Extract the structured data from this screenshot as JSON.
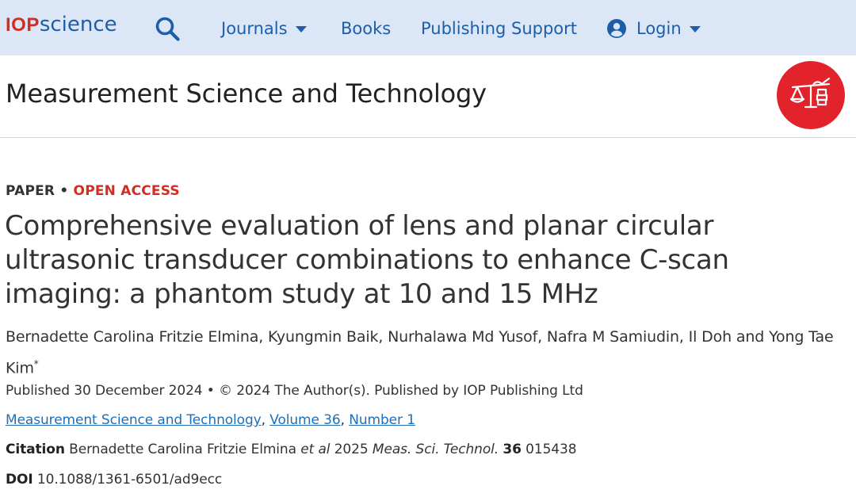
{
  "nav": {
    "logo_iop": "IOP",
    "logo_science": "science",
    "search_icon": "search-icon",
    "journals": "Journals",
    "books": "Books",
    "publishing_support": "Publishing Support",
    "login": "Login",
    "accent_color": "#1e5ea8",
    "background_color": "#dbe7f6",
    "brand_red": "#d22d23"
  },
  "journal": {
    "title": "Measurement Science and Technology",
    "logo_icon": "journal-logo-icon"
  },
  "article": {
    "type": "PAPER",
    "separator": "•",
    "access": "OPEN ACCESS",
    "title": "Comprehensive evaluation of lens and planar circular ultrasonic transducer combinations to enhance C-scan imaging: a phantom study at 10 and 15 MHz",
    "authors": "Bernadette Carolina Fritzie Elmina, Kyungmin Baik, Nurhalawa Md Yusof, Nafra M Samiudin, Il Doh and Yong Tae Kim",
    "corresponding_mark": "*",
    "published": "Published 30 December 2024 • © 2024 The Author(s). Published by IOP Publishing Ltd",
    "journal_link": "Measurement Science and Technology",
    "comma1": ", ",
    "volume_link": "Volume 36",
    "comma2": ", ",
    "number_link": "Number 1",
    "citation_label": "Citation",
    "citation_authors": "Bernadette Carolina Fritzie Elmina",
    "citation_etal": "et al",
    "citation_year": "2025",
    "citation_journal": "Meas. Sci. Technol.",
    "citation_volume": "36",
    "citation_article": "015438",
    "doi_label": "DOI",
    "doi": "10.1088/1361-6501/ad9ecc"
  }
}
